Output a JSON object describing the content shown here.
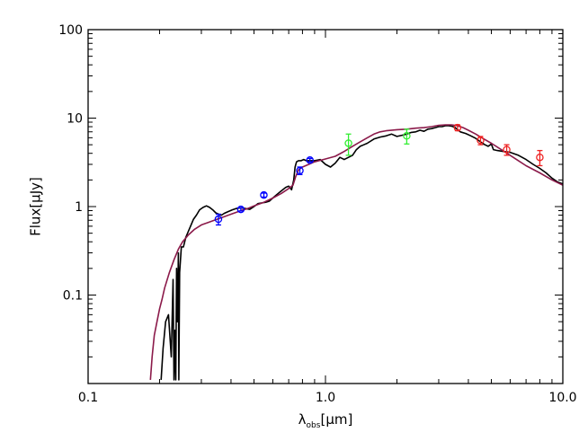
{
  "chart_data": {
    "type": "scatter",
    "title": "",
    "xlabel": {
      "base": "λ",
      "sub": "obs",
      "unit": "[μm]"
    },
    "ylabel": "Flux[μJy]",
    "xscale": "log",
    "yscale": "log",
    "xlim": [
      0.1,
      10.0
    ],
    "ylim": [
      0.01,
      100
    ],
    "grid": false,
    "legend": "none",
    "x_ticks": [
      {
        "value": 0.1,
        "label": "0.1"
      },
      {
        "value": 1.0,
        "label": "1.0"
      },
      {
        "value": 10.0,
        "label": "10.0"
      }
    ],
    "y_ticks": [
      {
        "value": 0.1,
        "label": "0.1"
      },
      {
        "value": 1,
        "label": "1"
      },
      {
        "value": 10,
        "label": "10"
      },
      {
        "value": 100,
        "label": "100"
      }
    ],
    "series": [
      {
        "kind": "line",
        "color": "#000000",
        "x": [
          0.203,
          0.207,
          0.212,
          0.218,
          0.224,
          0.228,
          0.23,
          0.232,
          0.234,
          0.236,
          0.238,
          0.24,
          0.241,
          0.243,
          0.247,
          0.252,
          0.258,
          0.264,
          0.27,
          0.278,
          0.286,
          0.295,
          0.305,
          0.315,
          0.325,
          0.335,
          0.345,
          0.355,
          0.365,
          0.375,
          0.39,
          0.405,
          0.42,
          0.44,
          0.46,
          0.48,
          0.5,
          0.52,
          0.54,
          0.56,
          0.58,
          0.6,
          0.62,
          0.65,
          0.68,
          0.7,
          0.72,
          0.735,
          0.745,
          0.755,
          0.77,
          0.79,
          0.81,
          0.83,
          0.86,
          0.9,
          0.95,
          1.0,
          1.05,
          1.1,
          1.15,
          1.2,
          1.25,
          1.3,
          1.35,
          1.4,
          1.45,
          1.5,
          1.6,
          1.7,
          1.8,
          1.9,
          2.0,
          2.1,
          2.2,
          2.3,
          2.4,
          2.5,
          2.6,
          2.7,
          2.8,
          2.9,
          3.0,
          3.1,
          3.2,
          3.3,
          3.4,
          3.5,
          3.7,
          3.9,
          4.1,
          4.3,
          4.5,
          4.7,
          4.85,
          5.0,
          5.1,
          5.3,
          5.6,
          6.0,
          6.5,
          7.0,
          7.5,
          8.0,
          8.5,
          9.0,
          9.5,
          10.0
        ],
        "y": [
          0.011,
          0.025,
          0.05,
          0.06,
          0.02,
          0.15,
          0.011,
          0.04,
          0.011,
          0.2,
          0.05,
          0.3,
          0.011,
          0.18,
          0.35,
          0.35,
          0.45,
          0.52,
          0.6,
          0.72,
          0.8,
          0.92,
          0.98,
          1.02,
          0.98,
          0.92,
          0.85,
          0.82,
          0.8,
          0.84,
          0.88,
          0.92,
          0.95,
          0.97,
          0.95,
          0.93,
          1.0,
          1.08,
          1.1,
          1.12,
          1.15,
          1.25,
          1.35,
          1.5,
          1.65,
          1.7,
          1.55,
          2.0,
          2.8,
          3.2,
          3.3,
          3.3,
          3.4,
          3.3,
          3.3,
          3.3,
          3.4,
          3.0,
          2.8,
          3.1,
          3.6,
          3.4,
          3.6,
          3.8,
          4.4,
          4.8,
          5.0,
          5.2,
          5.8,
          6.1,
          6.3,
          6.6,
          6.2,
          6.4,
          6.6,
          6.9,
          7.0,
          7.3,
          7.1,
          7.5,
          7.6,
          7.8,
          8.0,
          8.0,
          8.2,
          8.2,
          8.1,
          7.9,
          7.0,
          6.7,
          6.3,
          5.9,
          5.4,
          5.0,
          4.8,
          5.1,
          4.4,
          4.3,
          4.2,
          4.1,
          3.8,
          3.4,
          3.0,
          2.7,
          2.4,
          2.1,
          1.9,
          1.8
        ]
      },
      {
        "kind": "line",
        "color": "#8b1a4a",
        "x": [
          0.183,
          0.186,
          0.19,
          0.195,
          0.2,
          0.205,
          0.21,
          0.22,
          0.23,
          0.24,
          0.25,
          0.265,
          0.28,
          0.3,
          0.32,
          0.34,
          0.36,
          0.38,
          0.4,
          0.42,
          0.44,
          0.47,
          0.5,
          0.55,
          0.6,
          0.65,
          0.7,
          0.73,
          0.75,
          0.77,
          0.8,
          0.85,
          0.9,
          1.0,
          1.1,
          1.2,
          1.3,
          1.4,
          1.5,
          1.6,
          1.7,
          1.8,
          2.0,
          2.2,
          2.4,
          2.6,
          2.8,
          3.0,
          3.2,
          3.4,
          3.6,
          3.8,
          4.0,
          4.3,
          4.6,
          5.0,
          5.5,
          6.0,
          6.5,
          7.0,
          8.0,
          9.0,
          10.0
        ],
        "y": [
          0.011,
          0.02,
          0.035,
          0.05,
          0.07,
          0.09,
          0.12,
          0.18,
          0.25,
          0.33,
          0.4,
          0.48,
          0.55,
          0.62,
          0.66,
          0.7,
          0.74,
          0.78,
          0.82,
          0.86,
          0.9,
          0.95,
          1.02,
          1.12,
          1.25,
          1.4,
          1.6,
          1.75,
          2.2,
          2.6,
          2.8,
          3.0,
          3.2,
          3.45,
          3.7,
          4.2,
          4.8,
          5.4,
          6.0,
          6.6,
          7.0,
          7.2,
          7.4,
          7.5,
          7.7,
          7.8,
          8.0,
          8.3,
          8.4,
          8.4,
          8.2,
          7.8,
          7.3,
          6.6,
          5.9,
          5.2,
          4.4,
          3.8,
          3.3,
          2.9,
          2.4,
          2.0,
          1.75
        ]
      },
      {
        "kind": "markers",
        "name": "",
        "color": "#0000ff",
        "points": [
          {
            "x": 0.354,
            "y": 0.72,
            "err": 0.1
          },
          {
            "x": 0.44,
            "y": 0.93,
            "err": 0.04
          },
          {
            "x": 0.55,
            "y": 1.35,
            "err": 0.07
          },
          {
            "x": 0.78,
            "y": 2.55,
            "err": 0.25
          },
          {
            "x": 0.86,
            "y": 3.35,
            "err": 0.15
          }
        ]
      },
      {
        "kind": "markers",
        "name": "",
        "color": "#33ee33",
        "points": [
          {
            "x": 1.25,
            "y": 5.2,
            "err": 1.4
          },
          {
            "x": 2.2,
            "y": 6.3,
            "err": 1.2
          }
        ]
      },
      {
        "kind": "markers",
        "name": "",
        "color": "#ee2222",
        "points": [
          {
            "x": 3.6,
            "y": 7.8,
            "err": 0.6
          },
          {
            "x": 4.5,
            "y": 5.6,
            "err": 0.6
          },
          {
            "x": 5.8,
            "y": 4.4,
            "err": 0.6
          },
          {
            "x": 8.0,
            "y": 3.6,
            "err": 0.7
          }
        ]
      }
    ]
  }
}
